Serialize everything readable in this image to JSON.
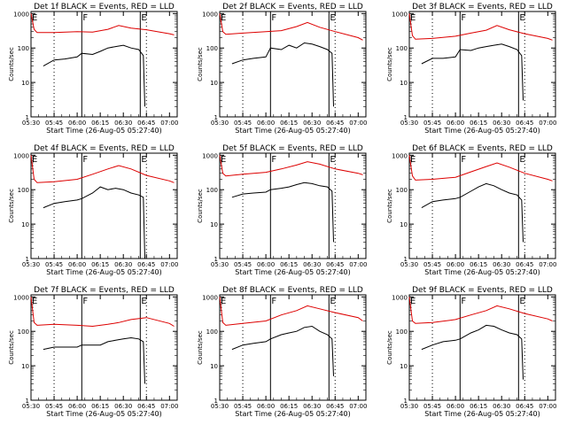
{
  "colors": {
    "events": "#000000",
    "lld": "#dd0000",
    "axis": "#000000",
    "background": "#ffffff"
  },
  "shared": {
    "ylabel": "Counts/sec",
    "xlabel": "Start Time (26-Aug-05 05:27:40)",
    "x_tick_labels": [
      "05:30",
      "05:45",
      "06:00",
      "06:15",
      "06:30",
      "06:45",
      "07:00"
    ],
    "y_tick_labels": [
      "1",
      "10",
      "100",
      "1000"
    ],
    "y_scale": "log",
    "ylim": [
      1,
      1000
    ]
  },
  "chart_data": [
    {
      "type": "line",
      "title": "Det 1f BLACK = Events, RED = LLD",
      "markers": [
        {
          "label": "E",
          "time": "05:30"
        },
        {
          "label": "F",
          "time": "06:03"
        },
        {
          "label": "E",
          "time": "06:41"
        }
      ],
      "series": [
        {
          "name": "Events",
          "color": "#000000",
          "x": [
            "05:38",
            "05:45",
            "05:52",
            "06:00",
            "06:03",
            "06:10",
            "06:15",
            "06:20",
            "06:25",
            "06:30",
            "06:35",
            "06:40",
            "06:43",
            "06:44"
          ],
          "y": [
            30,
            45,
            48,
            55,
            70,
            65,
            80,
            100,
            110,
            120,
            100,
            90,
            60,
            2
          ]
        },
        {
          "name": "LLD",
          "color": "#dd0000",
          "x": [
            "05:30",
            "05:32",
            "05:34",
            "05:45",
            "06:00",
            "06:10",
            "06:20",
            "06:27",
            "06:35",
            "06:45",
            "07:00",
            "07:03"
          ],
          "y": [
            1000,
            350,
            280,
            280,
            300,
            290,
            350,
            450,
            380,
            340,
            260,
            240
          ]
        }
      ]
    },
    {
      "type": "line",
      "title": "Det 2f BLACK = Events, RED = LLD",
      "markers": [
        {
          "label": "E",
          "time": "05:30"
        },
        {
          "label": "F",
          "time": "06:03"
        },
        {
          "label": "E",
          "time": "06:41"
        }
      ],
      "series": [
        {
          "name": "Events",
          "color": "#000000",
          "x": [
            "05:38",
            "05:45",
            "05:52",
            "06:00",
            "06:03",
            "06:10",
            "06:15",
            "06:20",
            "06:25",
            "06:30",
            "06:35",
            "06:40",
            "06:43",
            "06:44"
          ],
          "y": [
            35,
            45,
            50,
            55,
            100,
            90,
            120,
            100,
            140,
            130,
            110,
            90,
            70,
            2
          ]
        },
        {
          "name": "LLD",
          "color": "#dd0000",
          "x": [
            "05:30",
            "05:32",
            "05:34",
            "05:45",
            "06:00",
            "06:10",
            "06:20",
            "06:27",
            "06:35",
            "06:45",
            "07:00",
            "07:03"
          ],
          "y": [
            1000,
            300,
            250,
            270,
            300,
            320,
            420,
            550,
            400,
            300,
            200,
            170
          ]
        }
      ]
    },
    {
      "type": "line",
      "title": "Det 3f BLACK = Events, RED = LLD",
      "markers": [
        {
          "label": "E",
          "time": "05:30"
        },
        {
          "label": "F",
          "time": "06:03"
        },
        {
          "label": "E",
          "time": "06:41"
        }
      ],
      "series": [
        {
          "name": "Events",
          "color": "#000000",
          "x": [
            "05:38",
            "05:45",
            "05:52",
            "06:00",
            "06:03",
            "06:10",
            "06:15",
            "06:20",
            "06:25",
            "06:30",
            "06:35",
            "06:40",
            "06:43",
            "06:44"
          ],
          "y": [
            35,
            50,
            50,
            55,
            90,
            85,
            100,
            110,
            120,
            130,
            110,
            90,
            60,
            3
          ]
        },
        {
          "name": "LLD",
          "color": "#dd0000",
          "x": [
            "05:30",
            "05:32",
            "05:34",
            "05:45",
            "06:00",
            "06:10",
            "06:20",
            "06:27",
            "06:35",
            "06:45",
            "07:00",
            "07:03"
          ],
          "y": [
            1000,
            230,
            180,
            190,
            220,
            270,
            330,
            450,
            340,
            260,
            190,
            170
          ]
        }
      ]
    },
    {
      "type": "line",
      "title": "Det 4f BLACK = Events, RED = LLD",
      "markers": [
        {
          "label": "E",
          "time": "05:30"
        },
        {
          "label": "F",
          "time": "06:03"
        },
        {
          "label": "E",
          "time": "06:41"
        }
      ],
      "series": [
        {
          "name": "Events",
          "color": "#000000",
          "x": [
            "05:38",
            "05:45",
            "05:52",
            "06:00",
            "06:03",
            "06:10",
            "06:15",
            "06:20",
            "06:25",
            "06:30",
            "06:35",
            "06:40",
            "06:43",
            "06:44"
          ],
          "y": [
            30,
            40,
            45,
            50,
            55,
            80,
            120,
            100,
            110,
            100,
            80,
            70,
            60,
            1
          ]
        },
        {
          "name": "LLD",
          "color": "#dd0000",
          "x": [
            "05:30",
            "05:32",
            "05:34",
            "05:45",
            "06:00",
            "06:10",
            "06:20",
            "06:27",
            "06:35",
            "06:45",
            "07:00",
            "07:03"
          ],
          "y": [
            1000,
            200,
            160,
            170,
            200,
            280,
            400,
            500,
            400,
            260,
            180,
            160
          ]
        }
      ]
    },
    {
      "type": "line",
      "title": "Det 5f BLACK = Events, RED = LLD",
      "markers": [
        {
          "label": "E",
          "time": "05:30"
        },
        {
          "label": "F",
          "time": "06:03"
        },
        {
          "label": "E",
          "time": "06:41"
        }
      ],
      "series": [
        {
          "name": "Events",
          "color": "#000000",
          "x": [
            "05:38",
            "05:45",
            "05:52",
            "06:00",
            "06:03",
            "06:10",
            "06:15",
            "06:20",
            "06:25",
            "06:30",
            "06:35",
            "06:40",
            "06:43",
            "06:44"
          ],
          "y": [
            60,
            75,
            80,
            85,
            100,
            110,
            120,
            140,
            160,
            150,
            130,
            120,
            90,
            3
          ]
        },
        {
          "name": "LLD",
          "color": "#dd0000",
          "x": [
            "05:30",
            "05:32",
            "05:34",
            "05:45",
            "06:00",
            "06:10",
            "06:20",
            "06:27",
            "06:35",
            "06:45",
            "07:00",
            "07:03"
          ],
          "y": [
            1000,
            300,
            250,
            280,
            320,
            400,
            520,
            650,
            550,
            400,
            300,
            270
          ]
        }
      ]
    },
    {
      "type": "line",
      "title": "Det 6f BLACK = Events, RED = LLD",
      "markers": [
        {
          "label": "E",
          "time": "05:30"
        },
        {
          "label": "F",
          "time": "06:03"
        },
        {
          "label": "E",
          "time": "06:41"
        }
      ],
      "series": [
        {
          "name": "Events",
          "color": "#000000",
          "x": [
            "05:38",
            "05:45",
            "05:52",
            "06:00",
            "06:03",
            "06:10",
            "06:15",
            "06:20",
            "06:25",
            "06:30",
            "06:35",
            "06:40",
            "06:43",
            "06:44"
          ],
          "y": [
            30,
            45,
            50,
            55,
            60,
            90,
            120,
            150,
            130,
            100,
            80,
            70,
            50,
            3
          ]
        },
        {
          "name": "LLD",
          "color": "#dd0000",
          "x": [
            "05:30",
            "05:32",
            "05:34",
            "05:45",
            "06:00",
            "06:10",
            "06:20",
            "06:27",
            "06:35",
            "06:45",
            "07:00",
            "07:03"
          ],
          "y": [
            1000,
            250,
            190,
            200,
            230,
            330,
            470,
            600,
            450,
            300,
            200,
            180
          ]
        }
      ]
    },
    {
      "type": "line",
      "title": "Det 7f BLACK = Events, RED = LLD",
      "markers": [
        {
          "label": "E",
          "time": "05:30"
        },
        {
          "label": "F",
          "time": "06:03"
        },
        {
          "label": "E",
          "time": "06:41"
        }
      ],
      "series": [
        {
          "name": "Events",
          "color": "#000000",
          "x": [
            "05:38",
            "05:45",
            "05:52",
            "06:00",
            "06:03",
            "06:10",
            "06:15",
            "06:20",
            "06:25",
            "06:30",
            "06:35",
            "06:40",
            "06:43",
            "06:44"
          ],
          "y": [
            30,
            35,
            35,
            35,
            40,
            40,
            40,
            50,
            55,
            60,
            65,
            60,
            50,
            3
          ]
        },
        {
          "name": "LLD",
          "color": "#dd0000",
          "x": [
            "05:30",
            "05:32",
            "05:34",
            "05:45",
            "06:00",
            "06:10",
            "06:20",
            "06:27",
            "06:35",
            "06:45",
            "07:00",
            "07:03"
          ],
          "y": [
            1000,
            180,
            150,
            160,
            150,
            140,
            160,
            180,
            220,
            250,
            170,
            140
          ]
        }
      ]
    },
    {
      "type": "line",
      "title": "Det 8f BLACK = Events, RED = LLD",
      "markers": [
        {
          "label": "E",
          "time": "05:30"
        },
        {
          "label": "F",
          "time": "06:03"
        },
        {
          "label": "E",
          "time": "06:41"
        }
      ],
      "series": [
        {
          "name": "Events",
          "color": "#000000",
          "x": [
            "05:38",
            "05:45",
            "05:52",
            "06:00",
            "06:03",
            "06:10",
            "06:15",
            "06:20",
            "06:25",
            "06:30",
            "06:35",
            "06:40",
            "06:43",
            "06:44"
          ],
          "y": [
            30,
            40,
            45,
            50,
            60,
            80,
            90,
            100,
            130,
            140,
            100,
            80,
            60,
            5
          ]
        },
        {
          "name": "LLD",
          "color": "#dd0000",
          "x": [
            "05:30",
            "05:32",
            "05:34",
            "05:45",
            "06:00",
            "06:10",
            "06:20",
            "06:27",
            "06:35",
            "06:45",
            "07:00",
            "07:03"
          ],
          "y": [
            1000,
            180,
            150,
            170,
            200,
            300,
            400,
            550,
            450,
            350,
            250,
            200
          ]
        }
      ]
    },
    {
      "type": "line",
      "title": "Det 9f BLACK = Events, RED = LLD",
      "markers": [
        {
          "label": "E",
          "time": "05:30"
        },
        {
          "label": "F",
          "time": "06:03"
        },
        {
          "label": "E",
          "time": "06:41"
        }
      ],
      "series": [
        {
          "name": "Events",
          "color": "#000000",
          "x": [
            "05:38",
            "05:45",
            "05:52",
            "06:00",
            "06:03",
            "06:10",
            "06:15",
            "06:20",
            "06:25",
            "06:30",
            "06:35",
            "06:40",
            "06:43",
            "06:44"
          ],
          "y": [
            30,
            40,
            50,
            55,
            60,
            90,
            110,
            150,
            140,
            110,
            90,
            80,
            60,
            4
          ]
        },
        {
          "name": "LLD",
          "color": "#dd0000",
          "x": [
            "05:30",
            "05:32",
            "05:34",
            "05:45",
            "06:00",
            "06:10",
            "06:20",
            "06:27",
            "06:35",
            "06:45",
            "07:00",
            "07:03"
          ],
          "y": [
            1000,
            200,
            170,
            180,
            220,
            300,
            400,
            550,
            450,
            330,
            230,
            200
          ]
        }
      ]
    }
  ]
}
